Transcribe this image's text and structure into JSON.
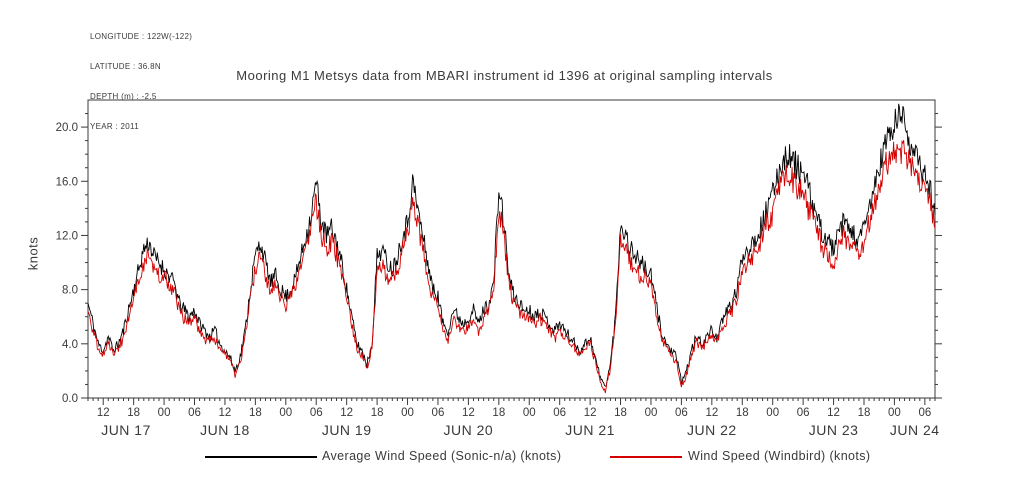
{
  "header": {
    "lines": [
      "LONGITUDE : 122W(-122)",
      "LATITUDE : 36.8N",
      "DEPTH (m) : -2.5",
      "YEAR : 2011"
    ]
  },
  "chart_data": {
    "type": "line",
    "title": "Mooring M1 Metsys data from MBARI instrument id 1396 at original sampling intervals",
    "xlabel": "",
    "ylabel": "knots",
    "ylim": [
      0,
      22
    ],
    "y_ticks": {
      "values": [
        0,
        4,
        8,
        12,
        16,
        20
      ],
      "labels": [
        "0.0",
        "4.0",
        "8.0",
        "12.0",
        "16.0",
        "20.0"
      ]
    },
    "x_axis": {
      "epoch": "JUN 17 00:00",
      "start_hour": 9,
      "end_hour": 176,
      "major_tick_hours": 6,
      "ticks": [
        {
          "t": 12,
          "label": "12"
        },
        {
          "t": 18,
          "label": "18"
        },
        {
          "t": 24,
          "label": "00"
        },
        {
          "t": 30,
          "label": "06"
        },
        {
          "t": 36,
          "label": "12"
        },
        {
          "t": 42,
          "label": "18"
        },
        {
          "t": 48,
          "label": "00"
        },
        {
          "t": 54,
          "label": "06"
        },
        {
          "t": 60,
          "label": "12"
        },
        {
          "t": 66,
          "label": "18"
        },
        {
          "t": 72,
          "label": "00"
        },
        {
          "t": 78,
          "label": "06"
        },
        {
          "t": 84,
          "label": "12"
        },
        {
          "t": 90,
          "label": "18"
        },
        {
          "t": 96,
          "label": "00"
        },
        {
          "t": 102,
          "label": "06"
        },
        {
          "t": 108,
          "label": "12"
        },
        {
          "t": 114,
          "label": "18"
        },
        {
          "t": 120,
          "label": "00"
        },
        {
          "t": 126,
          "label": "06"
        },
        {
          "t": 132,
          "label": "12"
        },
        {
          "t": 138,
          "label": "18"
        },
        {
          "t": 144,
          "label": "00"
        },
        {
          "t": 150,
          "label": "06"
        },
        {
          "t": 156,
          "label": "12"
        },
        {
          "t": 162,
          "label": "18"
        },
        {
          "t": 168,
          "label": "00"
        },
        {
          "t": 174,
          "label": "06"
        }
      ],
      "day_labels": [
        {
          "text": "JUN 17",
          "t_mid": 16.5
        },
        {
          "text": "JUN 18",
          "t_mid": 36
        },
        {
          "text": "JUN 19",
          "t_mid": 60
        },
        {
          "text": "JUN 20",
          "t_mid": 84
        },
        {
          "text": "JUN 21",
          "t_mid": 108
        },
        {
          "text": "JUN 22",
          "t_mid": 132
        },
        {
          "text": "JUN 23",
          "t_mid": 156
        },
        {
          "text": "JUN 24",
          "t_mid": 172
        }
      ]
    },
    "sample_start_hour": 9,
    "sample_step_hours": 1,
    "series": [
      {
        "name": "Average Wind Speed (Sonic-n/a) (knots)",
        "color": "#000000",
        "values": [
          7.0,
          5.5,
          4.0,
          3.5,
          4.5,
          3.5,
          4.0,
          5.0,
          6.5,
          8.0,
          9.5,
          11.0,
          11.5,
          10.5,
          10.0,
          9.5,
          9.0,
          8.5,
          7.0,
          6.5,
          6.0,
          6.5,
          5.5,
          5.0,
          4.5,
          5.0,
          4.0,
          3.5,
          3.0,
          2.0,
          3.0,
          5.0,
          8.0,
          10.5,
          11.5,
          10.0,
          8.5,
          9.0,
          8.0,
          7.5,
          8.0,
          9.0,
          10.5,
          12.0,
          13.5,
          16.0,
          13.0,
          12.0,
          12.5,
          11.5,
          10.0,
          8.0,
          6.0,
          4.0,
          3.5,
          2.5,
          4.0,
          10.5,
          11.0,
          10.0,
          9.5,
          10.5,
          12.0,
          13.0,
          16.0,
          14.0,
          12.0,
          10.0,
          8.0,
          7.5,
          5.5,
          5.0,
          6.5,
          6.0,
          5.5,
          6.0,
          6.5,
          5.5,
          6.5,
          7.0,
          8.5,
          15.5,
          13.0,
          9.0,
          7.5,
          7.0,
          6.5,
          6.5,
          6.0,
          6.5,
          6.0,
          5.5,
          5.0,
          5.5,
          5.0,
          4.5,
          4.0,
          3.5,
          4.0,
          4.5,
          3.0,
          1.5,
          0.8,
          2.5,
          6.0,
          13.0,
          12.0,
          11.0,
          10.5,
          10.0,
          9.5,
          9.0,
          7.0,
          5.0,
          4.0,
          3.5,
          3.0,
          1.2,
          2.0,
          3.5,
          4.5,
          4.0,
          4.5,
          5.0,
          4.5,
          5.5,
          6.5,
          7.0,
          8.0,
          10.5,
          11.0,
          11.5,
          12.0,
          13.0,
          14.0,
          15.0,
          16.5,
          17.5,
          18.0,
          17.5,
          17.0,
          16.5,
          15.5,
          14.0,
          13.0,
          12.0,
          11.5,
          11.0,
          12.0,
          13.0,
          12.5,
          12.0,
          11.5,
          12.5,
          14.0,
          15.5,
          17.0,
          18.5,
          19.5,
          20.0,
          21.0,
          20.5,
          19.0,
          18.0,
          17.0,
          16.5,
          15.5,
          13.5
        ]
      },
      {
        "name": "Wind Speed (Windbird) (knots)",
        "color": "#d40000",
        "values": [
          6.4,
          4.9,
          3.7,
          3.2,
          4.2,
          3.2,
          3.7,
          4.4,
          5.9,
          7.4,
          8.9,
          10.0,
          10.5,
          9.5,
          9.0,
          8.9,
          8.4,
          7.9,
          6.4,
          5.9,
          5.4,
          5.9,
          4.9,
          4.4,
          4.2,
          4.4,
          3.7,
          3.2,
          2.7,
          1.7,
          2.7,
          4.4,
          7.4,
          9.5,
          10.5,
          9.0,
          7.9,
          8.4,
          7.4,
          6.9,
          7.4,
          8.4,
          9.5,
          11.0,
          12.5,
          14.5,
          12.0,
          11.0,
          11.5,
          10.5,
          9.0,
          7.4,
          5.4,
          3.7,
          3.2,
          2.2,
          3.7,
          9.5,
          10.0,
          9.0,
          8.9,
          9.5,
          11.0,
          12.0,
          14.5,
          13.0,
          11.0,
          9.0,
          7.4,
          6.9,
          4.9,
          4.4,
          5.9,
          5.4,
          4.9,
          5.4,
          5.9,
          4.9,
          5.9,
          6.4,
          7.9,
          14.0,
          12.0,
          8.4,
          6.9,
          6.4,
          5.9,
          5.9,
          5.4,
          5.9,
          5.4,
          4.9,
          4.4,
          4.9,
          4.4,
          4.2,
          3.7,
          3.2,
          3.7,
          4.2,
          2.7,
          1.2,
          0.5,
          2.2,
          5.4,
          12.0,
          11.0,
          10.0,
          9.5,
          9.0,
          8.9,
          8.4,
          6.4,
          4.4,
          3.7,
          3.2,
          2.7,
          0.9,
          1.7,
          3.2,
          4.2,
          3.7,
          4.2,
          4.4,
          4.2,
          4.9,
          5.9,
          6.4,
          7.4,
          9.5,
          10.0,
          10.5,
          11.0,
          12.0,
          13.0,
          13.5,
          15.0,
          16.0,
          16.5,
          16.0,
          15.5,
          15.0,
          14.0,
          13.0,
          12.0,
          11.0,
          10.5,
          10.0,
          11.0,
          12.0,
          11.5,
          11.0,
          10.5,
          11.5,
          13.0,
          14.0,
          15.5,
          17.0,
          17.5,
          18.0,
          18.5,
          18.0,
          17.5,
          16.5,
          16.0,
          15.5,
          14.5,
          12.5
        ]
      }
    ],
    "legend_position": "bottom",
    "grid": false,
    "render": {
      "noise_amplitude": 0.45,
      "noise_substeps": 6,
      "noise_seed": 11
    }
  }
}
